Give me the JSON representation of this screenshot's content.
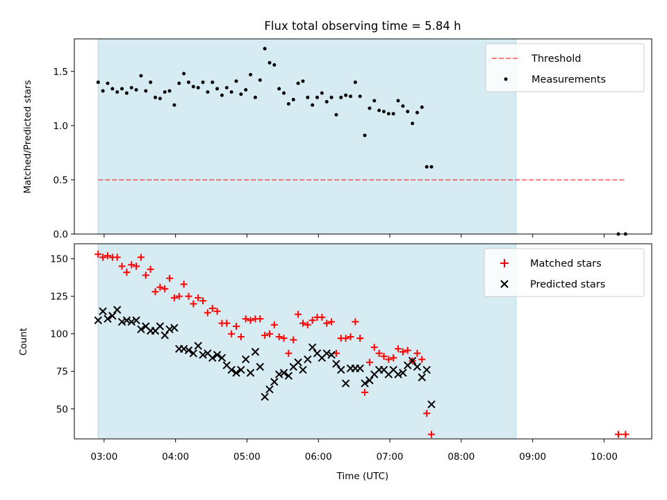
{
  "title": "Flux total observing time = 5.84 h",
  "colors": {
    "shade": "#add8e6",
    "threshold": "#ff0000",
    "measure": "#000000",
    "matched": "#ff0000",
    "predicted": "#000000"
  },
  "chart_data": [
    {
      "type": "scatter",
      "title": "Flux total observing time = 5.84 h",
      "ylabel": "Matched/Predicted stars",
      "xlim": [
        "02:35",
        "10:40"
      ],
      "ylim": [
        0,
        1.8
      ],
      "yticks": [
        "0.0",
        "0.5",
        "1.0",
        "1.5"
      ],
      "ytick_values": [
        0,
        0.5,
        1,
        1.5
      ],
      "shaded_span": [
        "02:55",
        "08:46"
      ],
      "legend": "top-right",
      "threshold": {
        "name": "Threshold",
        "value": 0.5,
        "x_range": [
          "02:55",
          "10:18"
        ],
        "style": "dashed"
      },
      "series": [
        {
          "name": "Measurements",
          "points": [
            [
              "02:55",
              1.4
            ],
            [
              "02:59",
              1.32
            ],
            [
              "03:03",
              1.39
            ],
            [
              "03:07",
              1.34
            ],
            [
              "03:11",
              1.31
            ],
            [
              "03:15",
              1.34
            ],
            [
              "03:19",
              1.3
            ],
            [
              "03:23",
              1.35
            ],
            [
              "03:27",
              1.33
            ],
            [
              "03:31",
              1.46
            ],
            [
              "03:35",
              1.32
            ],
            [
              "03:39",
              1.4
            ],
            [
              "03:43",
              1.26
            ],
            [
              "03:47",
              1.25
            ],
            [
              "03:51",
              1.31
            ],
            [
              "03:55",
              1.32
            ],
            [
              "03:59",
              1.19
            ],
            [
              "04:03",
              1.39
            ],
            [
              "04:07",
              1.48
            ],
            [
              "04:11",
              1.4
            ],
            [
              "04:15",
              1.36
            ],
            [
              "04:19",
              1.35
            ],
            [
              "04:23",
              1.4
            ],
            [
              "04:27",
              1.31
            ],
            [
              "04:31",
              1.4
            ],
            [
              "04:35",
              1.34
            ],
            [
              "04:39",
              1.28
            ],
            [
              "04:43",
              1.35
            ],
            [
              "04:47",
              1.31
            ],
            [
              "04:51",
              1.41
            ],
            [
              "04:55",
              1.29
            ],
            [
              "04:59",
              1.33
            ],
            [
              "05:03",
              1.47
            ],
            [
              "05:07",
              1.26
            ],
            [
              "05:11",
              1.42
            ],
            [
              "05:15",
              1.71
            ],
            [
              "05:19",
              1.58
            ],
            [
              "05:23",
              1.56
            ],
            [
              "05:27",
              1.34
            ],
            [
              "05:31",
              1.3
            ],
            [
              "05:35",
              1.2
            ],
            [
              "05:39",
              1.24
            ],
            [
              "05:43",
              1.39
            ],
            [
              "05:47",
              1.41
            ],
            [
              "05:51",
              1.26
            ],
            [
              "05:55",
              1.19
            ],
            [
              "05:59",
              1.26
            ],
            [
              "06:03",
              1.3
            ],
            [
              "06:07",
              1.22
            ],
            [
              "06:11",
              1.26
            ],
            [
              "06:15",
              1.1
            ],
            [
              "06:19",
              1.26
            ],
            [
              "06:23",
              1.28
            ],
            [
              "06:27",
              1.27
            ],
            [
              "06:31",
              1.4
            ],
            [
              "06:35",
              1.27
            ],
            [
              "06:39",
              0.91
            ],
            [
              "06:43",
              1.16
            ],
            [
              "06:47",
              1.23
            ],
            [
              "06:51",
              1.14
            ],
            [
              "06:55",
              1.13
            ],
            [
              "06:59",
              1.11
            ],
            [
              "07:03",
              1.11
            ],
            [
              "07:07",
              1.23
            ],
            [
              "07:11",
              1.18
            ],
            [
              "07:15",
              1.13
            ],
            [
              "07:19",
              1.02
            ],
            [
              "07:23",
              1.12
            ],
            [
              "07:27",
              1.17
            ],
            [
              "07:31",
              0.62
            ],
            [
              "07:35",
              0.62
            ],
            [
              "10:12",
              0.0
            ],
            [
              "10:18",
              0.0
            ]
          ]
        }
      ]
    },
    {
      "type": "scatter",
      "xlabel": "Time (UTC)",
      "ylabel": "Count",
      "xlim": [
        "02:35",
        "10:40"
      ],
      "ylim": [
        30,
        160
      ],
      "yticks": [
        "50",
        "75",
        "100",
        "125",
        "150"
      ],
      "ytick_values": [
        50,
        75,
        100,
        125,
        150
      ],
      "xticks": [
        "03:00",
        "04:00",
        "05:00",
        "06:00",
        "07:00",
        "08:00",
        "09:00",
        "10:00"
      ],
      "shaded_span": [
        "02:55",
        "08:46"
      ],
      "legend": "top-right",
      "series": [
        {
          "name": "Matched stars",
          "marker": "plus",
          "points": [
            [
              "02:55",
              153
            ],
            [
              "02:59",
              151
            ],
            [
              "03:03",
              152
            ],
            [
              "03:07",
              151
            ],
            [
              "03:11",
              151
            ],
            [
              "03:15",
              145
            ],
            [
              "03:19",
              141
            ],
            [
              "03:23",
              146
            ],
            [
              "03:27",
              145
            ],
            [
              "03:31",
              151
            ],
            [
              "03:35",
              139
            ],
            [
              "03:39",
              143
            ],
            [
              "03:43",
              128
            ],
            [
              "03:47",
              131
            ],
            [
              "03:51",
              130
            ],
            [
              "03:55",
              137
            ],
            [
              "03:59",
              124
            ],
            [
              "04:03",
              125
            ],
            [
              "04:07",
              133
            ],
            [
              "04:11",
              125
            ],
            [
              "04:15",
              120
            ],
            [
              "04:19",
              124
            ],
            [
              "04:23",
              122
            ],
            [
              "04:27",
              114
            ],
            [
              "04:31",
              117
            ],
            [
              "04:35",
              115
            ],
            [
              "04:39",
              107
            ],
            [
              "04:43",
              107
            ],
            [
              "04:47",
              100
            ],
            [
              "04:51",
              105
            ],
            [
              "04:55",
              98
            ],
            [
              "04:59",
              110
            ],
            [
              "05:03",
              109
            ],
            [
              "05:07",
              110
            ],
            [
              "05:11",
              110
            ],
            [
              "05:15",
              99
            ],
            [
              "05:19",
              100
            ],
            [
              "05:23",
              106
            ],
            [
              "05:27",
              98
            ],
            [
              "05:31",
              97
            ],
            [
              "05:35",
              87
            ],
            [
              "05:39",
              96
            ],
            [
              "05:43",
              113
            ],
            [
              "05:47",
              107
            ],
            [
              "05:51",
              106
            ],
            [
              "05:55",
              109
            ],
            [
              "05:59",
              111
            ],
            [
              "06:03",
              111
            ],
            [
              "06:07",
              107
            ],
            [
              "06:11",
              108
            ],
            [
              "06:15",
              87
            ],
            [
              "06:19",
              97
            ],
            [
              "06:23",
              97
            ],
            [
              "06:27",
              98
            ],
            [
              "06:31",
              108
            ],
            [
              "06:35",
              97
            ],
            [
              "06:39",
              61
            ],
            [
              "06:43",
              81
            ],
            [
              "06:47",
              91
            ],
            [
              "06:51",
              87
            ],
            [
              "06:55",
              85
            ],
            [
              "06:59",
              83
            ],
            [
              "07:03",
              84
            ],
            [
              "07:07",
              90
            ],
            [
              "07:11",
              88
            ],
            [
              "07:15",
              89
            ],
            [
              "07:19",
              82
            ],
            [
              "07:23",
              87
            ],
            [
              "07:27",
              83
            ],
            [
              "07:31",
              47
            ],
            [
              "07:35",
              33
            ],
            [
              "10:12",
              33
            ],
            [
              "10:18",
              33
            ]
          ]
        },
        {
          "name": "Predicted stars",
          "marker": "x",
          "points": [
            [
              "02:55",
              109
            ],
            [
              "02:59",
              115
            ],
            [
              "03:03",
              110
            ],
            [
              "03:07",
              112
            ],
            [
              "03:11",
              116
            ],
            [
              "03:15",
              108
            ],
            [
              "03:19",
              109
            ],
            [
              "03:23",
              108
            ],
            [
              "03:27",
              109
            ],
            [
              "03:31",
              103
            ],
            [
              "03:35",
              105
            ],
            [
              "03:39",
              102
            ],
            [
              "03:43",
              102
            ],
            [
              "03:47",
              105
            ],
            [
              "03:51",
              99
            ],
            [
              "03:55",
              103
            ],
            [
              "03:59",
              104
            ],
            [
              "04:03",
              90
            ],
            [
              "04:07",
              90
            ],
            [
              "04:11",
              89
            ],
            [
              "04:15",
              87
            ],
            [
              "04:19",
              92
            ],
            [
              "04:23",
              86
            ],
            [
              "04:27",
              87
            ],
            [
              "04:31",
              84
            ],
            [
              "04:35",
              86
            ],
            [
              "04:39",
              84
            ],
            [
              "04:43",
              79
            ],
            [
              "04:47",
              76
            ],
            [
              "04:51",
              74
            ],
            [
              "04:55",
              76
            ],
            [
              "04:59",
              83
            ],
            [
              "05:03",
              74
            ],
            [
              "05:07",
              88
            ],
            [
              "05:11",
              78
            ],
            [
              "05:15",
              58
            ],
            [
              "05:19",
              63
            ],
            [
              "05:23",
              68
            ],
            [
              "05:27",
              73
            ],
            [
              "05:31",
              74
            ],
            [
              "05:35",
              72
            ],
            [
              "05:39",
              78
            ],
            [
              "05:43",
              81
            ],
            [
              "05:47",
              76
            ],
            [
              "05:51",
              83
            ],
            [
              "05:55",
              91
            ],
            [
              "05:59",
              87
            ],
            [
              "06:03",
              84
            ],
            [
              "06:07",
              87
            ],
            [
              "06:11",
              86
            ],
            [
              "06:15",
              80
            ],
            [
              "06:19",
              76
            ],
            [
              "06:23",
              67
            ],
            [
              "06:27",
              77
            ],
            [
              "06:31",
              77
            ],
            [
              "06:35",
              77
            ],
            [
              "06:39",
              67
            ],
            [
              "06:43",
              69
            ],
            [
              "06:47",
              73
            ],
            [
              "06:51",
              76
            ],
            [
              "06:55",
              76
            ],
            [
              "06:59",
              73
            ],
            [
              "07:03",
              76
            ],
            [
              "07:07",
              73
            ],
            [
              "07:11",
              74
            ],
            [
              "07:15",
              79
            ],
            [
              "07:19",
              82
            ],
            [
              "07:23",
              78
            ],
            [
              "07:27",
              71
            ],
            [
              "07:31",
              76
            ],
            [
              "07:35",
              53
            ]
          ]
        }
      ]
    }
  ]
}
